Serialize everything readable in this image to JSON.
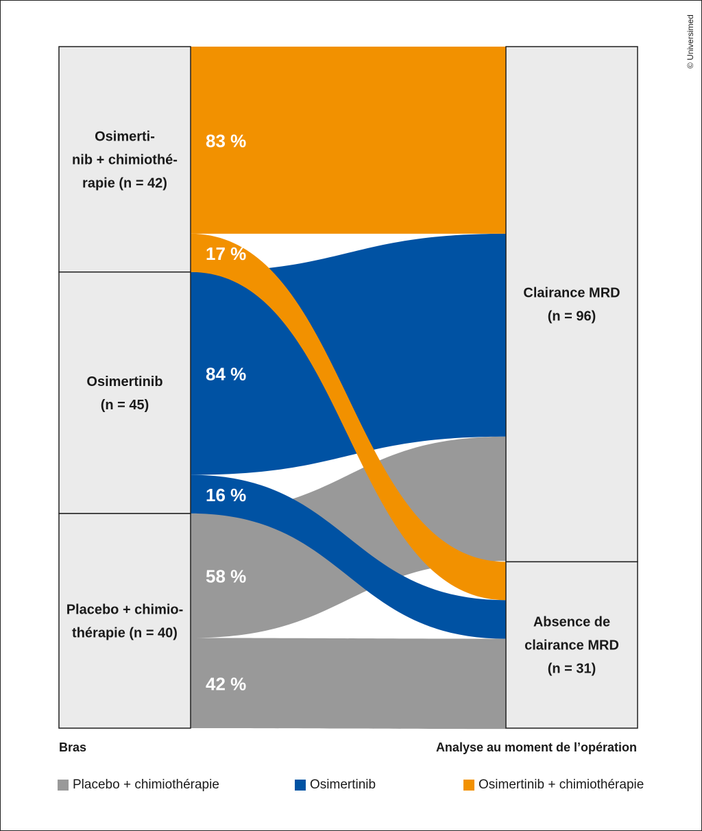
{
  "copyright": "© Universimed",
  "colors": {
    "placebo": "#999999",
    "osimertinib": "#0052a3",
    "osimertinib_chemo": "#f29100"
  },
  "chart_data": {
    "type": "sankey",
    "left_caption": "Bras",
    "right_caption": "Analyse au moment de l’opération",
    "source_nodes": [
      {
        "id": "osi_chemo",
        "lines": [
          "Osimerti-",
          "nib + chimiothé-",
          "rapie (n = 42)"
        ],
        "n": 42
      },
      {
        "id": "osi",
        "lines": [
          "Osimertinib",
          "(n = 45)"
        ],
        "n": 45
      },
      {
        "id": "placebo",
        "lines": [
          "Placebo + chimio-",
          "thérapie (n = 40)"
        ],
        "n": 40
      }
    ],
    "target_nodes": [
      {
        "id": "clear",
        "lines": [
          "Clairance MRD",
          "(n = 96)"
        ],
        "n": 96
      },
      {
        "id": "noclear",
        "lines": [
          "Absence de",
          "clairance MRD",
          "(n = 31)"
        ],
        "n": 31
      }
    ],
    "flows": [
      {
        "source": "osi_chemo",
        "target": "clear",
        "percent": 83,
        "label": "83 %"
      },
      {
        "source": "osi_chemo",
        "target": "noclear",
        "percent": 17,
        "label": "17 %"
      },
      {
        "source": "osi",
        "target": "clear",
        "percent": 84,
        "label": "84 %"
      },
      {
        "source": "osi",
        "target": "noclear",
        "percent": 16,
        "label": "16 %"
      },
      {
        "source": "placebo",
        "target": "clear",
        "percent": 58,
        "label": "58 %"
      },
      {
        "source": "placebo",
        "target": "noclear",
        "percent": 42,
        "label": "42 %"
      }
    ]
  },
  "legend": [
    {
      "label": "Placebo + chimiothérapie",
      "color": "#999999"
    },
    {
      "label": "Osimertinib",
      "color": "#0052a3"
    },
    {
      "label": "Osimertinib + chimiothérapie",
      "color": "#f29100"
    }
  ]
}
